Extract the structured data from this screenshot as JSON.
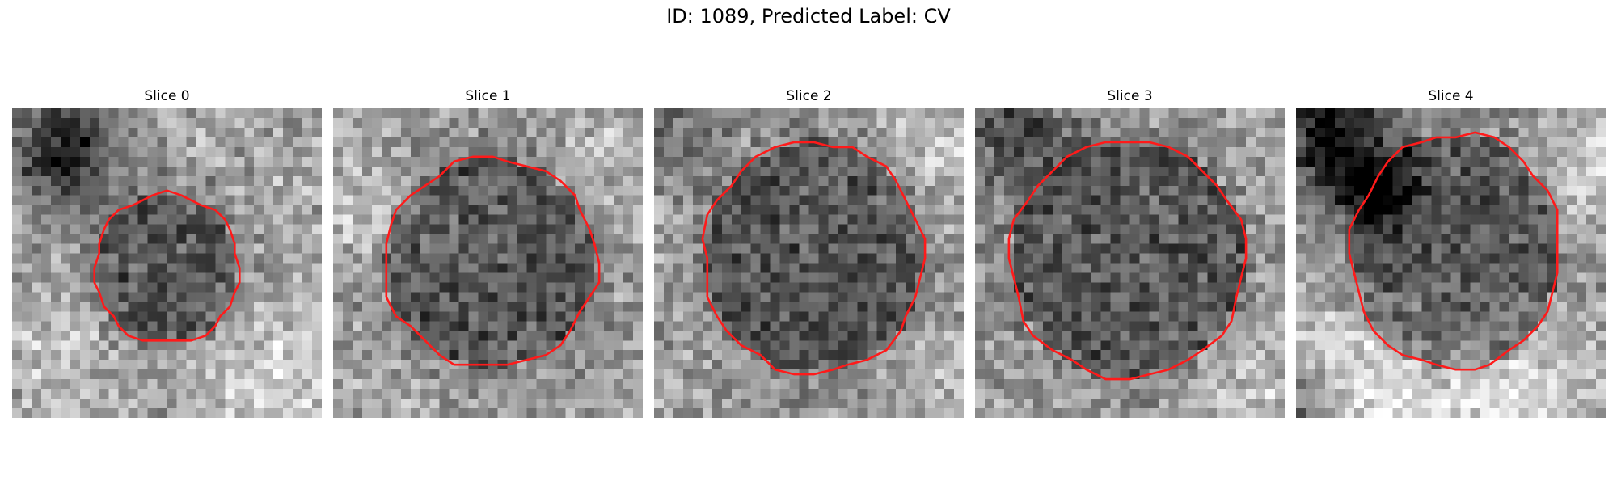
{
  "figure": {
    "title": "ID: 1089, Predicted Label: CV"
  },
  "colors": {
    "contour": "#ff1a1a",
    "background": "#ffffff"
  },
  "slices": [
    {
      "title": "Slice 0",
      "contour_color": "#ff1a1a"
    },
    {
      "title": "Slice 1",
      "contour_color": "#ff1a1a"
    },
    {
      "title": "Slice 2",
      "contour_color": "#ff1a1a"
    },
    {
      "title": "Slice 3",
      "contour_color": "#ff1a1a"
    },
    {
      "title": "Slice 4",
      "contour_color": "#ff1a1a"
    }
  ]
}
